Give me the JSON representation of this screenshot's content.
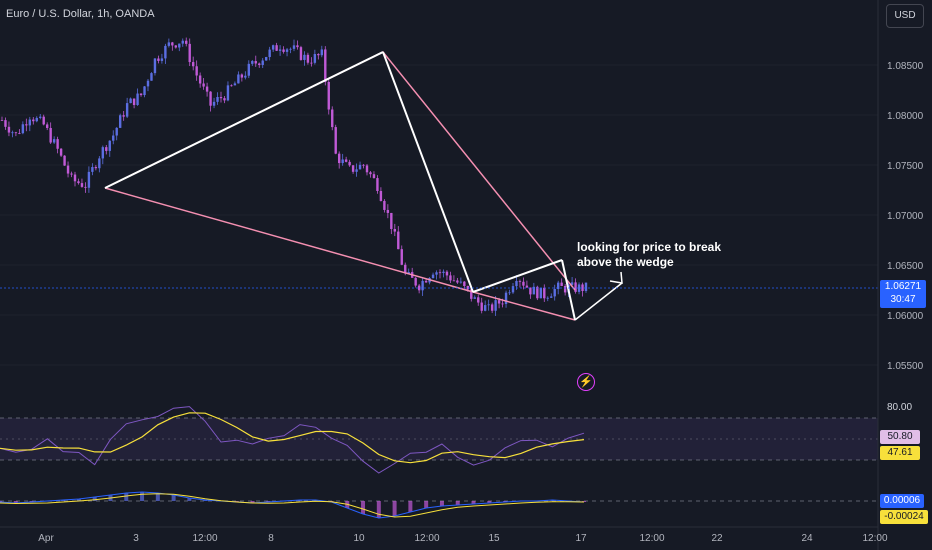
{
  "header": {
    "title": "Euro / U.S. Dollar, 1h, OANDA",
    "currency_button": "USD"
  },
  "price_label": {
    "price": "1.06271",
    "countdown": "30:47"
  },
  "annotation": {
    "line1": "looking for price to break",
    "line2": "above the wedge"
  },
  "icons": {
    "alert": "flash-icon"
  },
  "colors": {
    "background": "#161a25",
    "candle_up": "#5b6ee1",
    "candle_down": "#c05ad6",
    "rsi": "#7e57c2",
    "rsi_ma": "#f7e03b",
    "wedge_outer": "#f48fb1",
    "price_line": "#2962ff"
  },
  "chart_data": {
    "type": "line",
    "price_axis": {
      "ticks": [
        "1.08500",
        "1.08000",
        "1.07500",
        "1.07000",
        "1.06500",
        "1.06000",
        "1.05500"
      ],
      "ylim": [
        1.0525,
        1.0895
      ]
    },
    "time_axis": {
      "ticks": [
        "Apr",
        "3",
        "12:00",
        "8",
        "10",
        "12:00",
        "15",
        "17",
        "12:00",
        "22",
        "24",
        "12:00"
      ]
    },
    "price_series": {
      "t": [
        0,
        4,
        8,
        12,
        16,
        20,
        24,
        28,
        32,
        36,
        40,
        44,
        48,
        52,
        56,
        60,
        64,
        68,
        72,
        76,
        80,
        84,
        88,
        92,
        96,
        100,
        104,
        108,
        112,
        116,
        120,
        124,
        128,
        132,
        136,
        140,
        144,
        148,
        152,
        156,
        160,
        164,
        168
      ],
      "v": [
        1.0795,
        1.078,
        1.08,
        1.079,
        1.0765,
        1.0735,
        1.073,
        1.076,
        1.078,
        1.081,
        1.082,
        1.0855,
        1.087,
        1.0875,
        1.084,
        1.081,
        1.082,
        1.0835,
        1.085,
        1.086,
        1.087,
        1.0865,
        1.0855,
        1.086,
        1.076,
        1.0745,
        1.075,
        1.073,
        1.069,
        1.064,
        1.063,
        1.0645,
        1.064,
        1.063,
        1.0615,
        1.0605,
        1.0615,
        1.064,
        1.0625,
        1.062,
        1.0627,
        1.0627,
        1.0627
      ]
    },
    "rsi": {
      "level_high": "80.00",
      "value": "50.80",
      "ma_value": "47.61"
    },
    "macd": {
      "value": "0.00006",
      "signal": "-0.00024"
    }
  }
}
